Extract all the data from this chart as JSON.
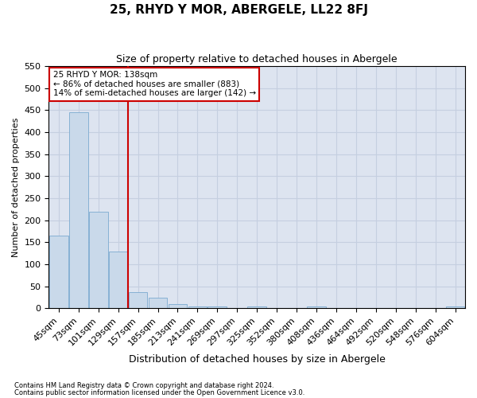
{
  "title": "25, RHYD Y MOR, ABERGELE, LL22 8FJ",
  "subtitle": "Size of property relative to detached houses in Abergele",
  "xlabel": "Distribution of detached houses by size in Abergele",
  "ylabel": "Number of detached properties",
  "footer1": "Contains HM Land Registry data © Crown copyright and database right 2024.",
  "footer2": "Contains public sector information licensed under the Open Government Licence v3.0.",
  "categories": [
    "45sqm",
    "73sqm",
    "101sqm",
    "129sqm",
    "157sqm",
    "185sqm",
    "213sqm",
    "241sqm",
    "269sqm",
    "297sqm",
    "325sqm",
    "352sqm",
    "380sqm",
    "408sqm",
    "436sqm",
    "464sqm",
    "492sqm",
    "520sqm",
    "548sqm",
    "576sqm",
    "604sqm"
  ],
  "values": [
    165,
    445,
    220,
    130,
    37,
    25,
    10,
    5,
    5,
    0,
    4,
    0,
    0,
    5,
    0,
    0,
    0,
    0,
    0,
    0,
    4
  ],
  "bar_color": "#c9d9ea",
  "bar_edge_color": "#7baad0",
  "grid_color": "#c5cfe0",
  "background_color": "#dde4f0",
  "vline_color": "#cc0000",
  "annotation_text": "25 RHYD Y MOR: 138sqm\n← 86% of detached houses are smaller (883)\n14% of semi-detached houses are larger (142) →",
  "annotation_box_color": "#cc0000",
  "ylim": [
    0,
    550
  ],
  "yticks": [
    0,
    50,
    100,
    150,
    200,
    250,
    300,
    350,
    400,
    450,
    500,
    550
  ],
  "vline_position": 3.5
}
